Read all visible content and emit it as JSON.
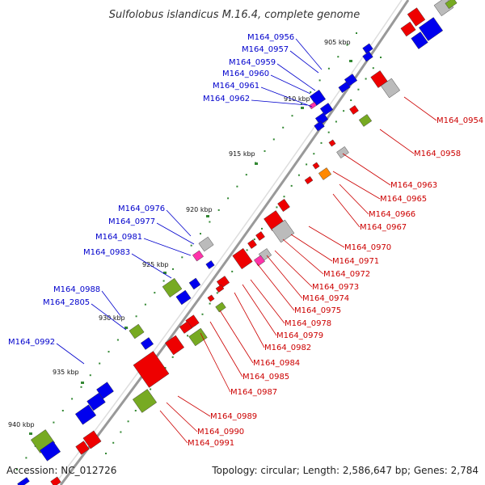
{
  "title": "Sulfolobus islandicus M.16.4, complete genome",
  "accession_text": "Accession: NC_012726",
  "summary_text": "Topology: circular; Length: 2,586,647 bp; Genes: 2,784",
  "colors": {
    "forward_cds": "#0000ee",
    "reverse_cds": "#ee0000",
    "trna": "#77aa22",
    "rrna": "#ff8800",
    "misc": "#aaaaaa",
    "pseudo": "#ff33aa",
    "backbone": "#888888"
  },
  "kbp_ticks": [
    "905 kbp",
    "910 kbp",
    "915 kbp",
    "920 kbp",
    "925 kbp",
    "930 kbp",
    "935 kbp",
    "940 kbp"
  ],
  "genes_forward": [
    "M164_0956",
    "M164_0957",
    "M164_0959",
    "M164_0960",
    "M164_0961",
    "M164_0962",
    "M164_0976",
    "M164_0977",
    "M164_0981",
    "M164_0983",
    "M164_0988",
    "M164_2805",
    "M164_0992"
  ],
  "genes_reverse": [
    "M164_0954",
    "M164_0958",
    "M164_0963",
    "M164_0965",
    "M164_0966",
    "M164_0967",
    "M164_0970",
    "M164_0971",
    "M164_0972",
    "M164_0973",
    "M164_0974",
    "M164_0975",
    "M164_0978",
    "M164_0979",
    "M164_0982",
    "M164_0984",
    "M164_0985",
    "M164_0987",
    "M164_0989",
    "M164_0990",
    "M164_0991"
  ]
}
